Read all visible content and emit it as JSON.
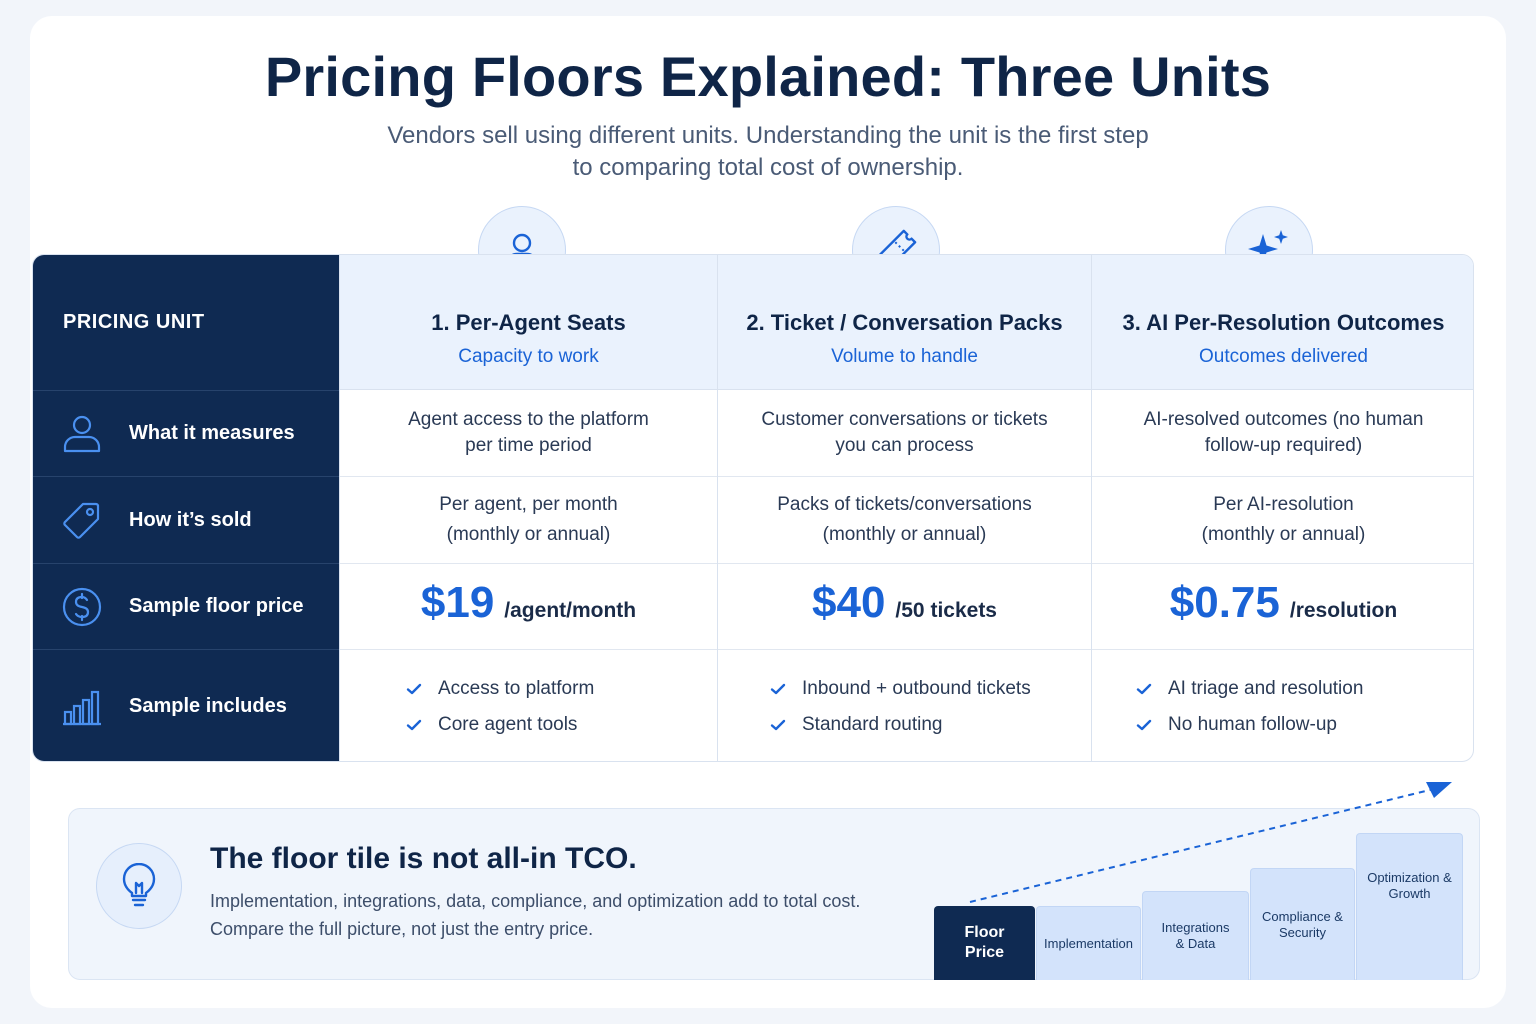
{
  "header": {
    "title": "Pricing Floors Explained: Three Units",
    "subtitle_line1": "Vendors sell using different units. Understanding the unit is the first step",
    "subtitle_line2": "to comparing total cost of ownership."
  },
  "table": {
    "corner_label": "PRICING UNIT",
    "rows": [
      {
        "label": "What it measures",
        "icon": "person-icon"
      },
      {
        "label": "How it’s sold",
        "icon": "tag-icon"
      },
      {
        "label": "Sample floor price",
        "icon": "dollar-icon"
      },
      {
        "label": "Sample includes",
        "icon": "bar-chart-icon"
      }
    ],
    "columns": [
      {
        "title": "1. Per-Agent Seats",
        "subtitle": "Capacity to work",
        "icon": "person-icon",
        "measures": [
          "Agent access to the platform",
          "per time period"
        ],
        "sold": [
          "Per agent, per month",
          "(monthly or annual)"
        ],
        "price": "$19",
        "price_unit": "/agent/month",
        "includes": [
          "Access to platform",
          "Core agent tools"
        ]
      },
      {
        "title": "2. Ticket / Conversation Packs",
        "subtitle": "Volume to handle",
        "icon": "ticket-icon",
        "measures": [
          "Customer conversations or tickets",
          "you can process"
        ],
        "sold": [
          "Packs of tickets/conversations",
          "(monthly or annual)"
        ],
        "price": "$40",
        "price_unit": "/50 tickets",
        "includes": [
          "Inbound + outbound tickets",
          "Standard routing"
        ]
      },
      {
        "title": "3. AI Per-Resolution Outcomes",
        "subtitle": "Outcomes delivered",
        "icon": "sparkle-icon",
        "measures": [
          "AI-resolved outcomes (no human",
          "follow-up required)"
        ],
        "sold": [
          "Per AI-resolution",
          "(monthly or annual)"
        ],
        "price": "$0.75",
        "price_unit": "/resolution",
        "includes": [
          "AI triage and resolution",
          "No human follow-up"
        ]
      }
    ]
  },
  "callout": {
    "title": "The floor tile is not all-in TCO.",
    "text_line1": "Implementation, integrations, data, compliance, and optimization add to total cost.",
    "text_line2": "Compare the full picture, not just the entry price.",
    "steps": [
      {
        "line1": "Floor",
        "line2": "Price"
      },
      {
        "line1": "Implementation",
        "line2": ""
      },
      {
        "line1": "Integrations",
        "line2": "& Data"
      },
      {
        "line1": "Compliance &",
        "line2": "Security"
      },
      {
        "line1": "Optimization &",
        "line2": "Growth"
      }
    ]
  },
  "colors": {
    "navy": "#0f2a52",
    "accent_blue": "#1a63d6",
    "header_tint": "#eaf2fd"
  }
}
